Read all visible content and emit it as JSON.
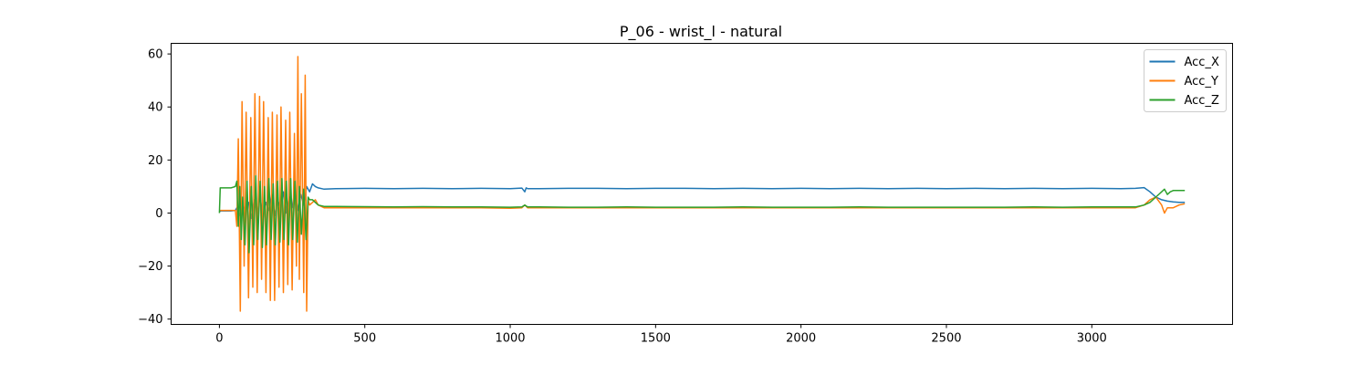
{
  "chart_data": {
    "type": "line",
    "title": "P_06 - wrist_l - natural",
    "xlabel": "",
    "ylabel": "",
    "xlim": [
      -166,
      3484
    ],
    "ylim": [
      -42,
      64
    ],
    "xticks": [
      0,
      500,
      1000,
      1500,
      2000,
      2500,
      3000
    ],
    "yticks": [
      -40,
      -20,
      0,
      20,
      40,
      60
    ],
    "grid": false,
    "legend_position": "upper right",
    "series": [
      {
        "name": "Acc_X",
        "color": "#1f77b4",
        "points": [
          [
            0,
            0.5
          ],
          [
            5,
            0.8
          ],
          [
            20,
            0.8
          ],
          [
            40,
            0.8
          ],
          [
            55,
            1
          ],
          [
            60,
            2
          ],
          [
            70,
            -1
          ],
          [
            80,
            3
          ],
          [
            90,
            1
          ],
          [
            100,
            4
          ],
          [
            110,
            -2
          ],
          [
            120,
            5
          ],
          [
            130,
            0
          ],
          [
            140,
            6
          ],
          [
            150,
            -2
          ],
          [
            160,
            4
          ],
          [
            170,
            1
          ],
          [
            180,
            7
          ],
          [
            190,
            -1
          ],
          [
            200,
            5
          ],
          [
            210,
            2
          ],
          [
            220,
            8
          ],
          [
            230,
            0
          ],
          [
            240,
            6
          ],
          [
            250,
            2
          ],
          [
            260,
            9
          ],
          [
            270,
            1
          ],
          [
            280,
            7
          ],
          [
            290,
            3
          ],
          [
            300,
            10
          ],
          [
            310,
            8
          ],
          [
            320,
            11
          ],
          [
            330,
            10
          ],
          [
            340,
            9.5
          ],
          [
            360,
            9
          ],
          [
            400,
            9.2
          ],
          [
            500,
            9.3
          ],
          [
            600,
            9.2
          ],
          [
            700,
            9.3
          ],
          [
            800,
            9.2
          ],
          [
            900,
            9.3
          ],
          [
            1000,
            9.2
          ],
          [
            1040,
            9.4
          ],
          [
            1050,
            8
          ],
          [
            1055,
            9.5
          ],
          [
            1060,
            9.2
          ],
          [
            1100,
            9.2
          ],
          [
            1200,
            9.3
          ],
          [
            1300,
            9.3
          ],
          [
            1400,
            9.2
          ],
          [
            1500,
            9.3
          ],
          [
            1600,
            9.3
          ],
          [
            1700,
            9.2
          ],
          [
            1800,
            9.3
          ],
          [
            1900,
            9.2
          ],
          [
            2000,
            9.3
          ],
          [
            2100,
            9.2
          ],
          [
            2200,
            9.3
          ],
          [
            2300,
            9.2
          ],
          [
            2400,
            9.3
          ],
          [
            2500,
            9.2
          ],
          [
            2600,
            9.3
          ],
          [
            2700,
            9.2
          ],
          [
            2800,
            9.3
          ],
          [
            2900,
            9.2
          ],
          [
            3000,
            9.3
          ],
          [
            3100,
            9.2
          ],
          [
            3150,
            9.3
          ],
          [
            3180,
            9.6
          ],
          [
            3200,
            8
          ],
          [
            3220,
            6
          ],
          [
            3240,
            5
          ],
          [
            3260,
            4.5
          ],
          [
            3280,
            4.2
          ],
          [
            3300,
            4
          ],
          [
            3320,
            4
          ]
        ]
      },
      {
        "name": "Acc_Y",
        "color": "#ff7f0e",
        "points": [
          [
            0,
            1
          ],
          [
            40,
            1
          ],
          [
            55,
            1
          ],
          [
            60,
            -5
          ],
          [
            65,
            28
          ],
          [
            72,
            -37
          ],
          [
            78,
            42
          ],
          [
            85,
            -20
          ],
          [
            92,
            38
          ],
          [
            100,
            -32
          ],
          [
            108,
            36
          ],
          [
            115,
            -28
          ],
          [
            122,
            45
          ],
          [
            130,
            -30
          ],
          [
            138,
            44
          ],
          [
            145,
            -25
          ],
          [
            152,
            42
          ],
          [
            160,
            -30
          ],
          [
            168,
            36
          ],
          [
            175,
            -33
          ],
          [
            182,
            38
          ],
          [
            190,
            -33
          ],
          [
            198,
            37
          ],
          [
            205,
            -28
          ],
          [
            212,
            40
          ],
          [
            220,
            -30
          ],
          [
            228,
            35
          ],
          [
            235,
            -27
          ],
          [
            242,
            38
          ],
          [
            250,
            -29
          ],
          [
            258,
            30
          ],
          [
            265,
            -20
          ],
          [
            270,
            59
          ],
          [
            275,
            -25
          ],
          [
            282,
            45
          ],
          [
            290,
            -30
          ],
          [
            295,
            52
          ],
          [
            300,
            -37
          ],
          [
            305,
            5
          ],
          [
            310,
            3
          ],
          [
            320,
            4
          ],
          [
            330,
            5
          ],
          [
            340,
            3
          ],
          [
            360,
            2
          ],
          [
            400,
            2
          ],
          [
            500,
            2
          ],
          [
            600,
            2
          ],
          [
            700,
            2
          ],
          [
            800,
            2
          ],
          [
            900,
            2
          ],
          [
            1000,
            1.8
          ],
          [
            1040,
            2
          ],
          [
            1050,
            3
          ],
          [
            1060,
            2
          ],
          [
            1100,
            2
          ],
          [
            1200,
            2
          ],
          [
            1300,
            2
          ],
          [
            1400,
            2
          ],
          [
            1500,
            2
          ],
          [
            1600,
            2
          ],
          [
            1700,
            2
          ],
          [
            1800,
            2
          ],
          [
            1900,
            2
          ],
          [
            2000,
            2
          ],
          [
            2100,
            2
          ],
          [
            2200,
            2
          ],
          [
            2300,
            2
          ],
          [
            2400,
            2
          ],
          [
            2500,
            2
          ],
          [
            2600,
            2
          ],
          [
            2700,
            2
          ],
          [
            2800,
            2
          ],
          [
            2900,
            2
          ],
          [
            3000,
            2
          ],
          [
            3100,
            2
          ],
          [
            3150,
            2
          ],
          [
            3180,
            3
          ],
          [
            3200,
            5
          ],
          [
            3220,
            6
          ],
          [
            3240,
            3
          ],
          [
            3250,
            0
          ],
          [
            3260,
            2
          ],
          [
            3280,
            2
          ],
          [
            3300,
            3
          ],
          [
            3320,
            3.5
          ]
        ]
      },
      {
        "name": "Acc_Z",
        "color": "#2ca02c",
        "points": [
          [
            0,
            0
          ],
          [
            3,
            9.5
          ],
          [
            20,
            9.5
          ],
          [
            40,
            9.5
          ],
          [
            55,
            10
          ],
          [
            60,
            12
          ],
          [
            65,
            -5
          ],
          [
            70,
            10
          ],
          [
            75,
            -10
          ],
          [
            80,
            6
          ],
          [
            88,
            -12
          ],
          [
            95,
            12
          ],
          [
            102,
            -15
          ],
          [
            110,
            10
          ],
          [
            118,
            -12
          ],
          [
            125,
            14
          ],
          [
            132,
            -10
          ],
          [
            140,
            12
          ],
          [
            148,
            -13
          ],
          [
            155,
            10
          ],
          [
            162,
            -12
          ],
          [
            170,
            13
          ],
          [
            178,
            -10
          ],
          [
            185,
            11
          ],
          [
            192,
            -12
          ],
          [
            200,
            12
          ],
          [
            208,
            -11
          ],
          [
            215,
            13
          ],
          [
            222,
            -10
          ],
          [
            230,
            12
          ],
          [
            238,
            -12
          ],
          [
            245,
            13
          ],
          [
            252,
            -10
          ],
          [
            260,
            12
          ],
          [
            268,
            -11
          ],
          [
            275,
            10
          ],
          [
            282,
            -8
          ],
          [
            290,
            9
          ],
          [
            298,
            -10
          ],
          [
            305,
            6
          ],
          [
            310,
            5
          ],
          [
            320,
            5
          ],
          [
            330,
            4
          ],
          [
            340,
            3
          ],
          [
            360,
            2.5
          ],
          [
            400,
            2.5
          ],
          [
            500,
            2.4
          ],
          [
            600,
            2.3
          ],
          [
            700,
            2.4
          ],
          [
            800,
            2.3
          ],
          [
            900,
            2.3
          ],
          [
            1000,
            2.2
          ],
          [
            1040,
            2.3
          ],
          [
            1050,
            3
          ],
          [
            1060,
            2.3
          ],
          [
            1100,
            2.3
          ],
          [
            1200,
            2.2
          ],
          [
            1300,
            2.2
          ],
          [
            1400,
            2.3
          ],
          [
            1500,
            2.2
          ],
          [
            1600,
            2.2
          ],
          [
            1700,
            2.2
          ],
          [
            1800,
            2.3
          ],
          [
            1900,
            2.2
          ],
          [
            2000,
            2.2
          ],
          [
            2100,
            2.2
          ],
          [
            2200,
            2.3
          ],
          [
            2300,
            2.2
          ],
          [
            2400,
            2.2
          ],
          [
            2500,
            2.2
          ],
          [
            2600,
            2.2
          ],
          [
            2700,
            2.2
          ],
          [
            2800,
            2.3
          ],
          [
            2900,
            2.2
          ],
          [
            3000,
            2.3
          ],
          [
            3100,
            2.3
          ],
          [
            3150,
            2.3
          ],
          [
            3180,
            3
          ],
          [
            3200,
            4
          ],
          [
            3220,
            6
          ],
          [
            3240,
            8
          ],
          [
            3250,
            9
          ],
          [
            3260,
            7
          ],
          [
            3270,
            8
          ],
          [
            3280,
            8.5
          ],
          [
            3300,
            8.5
          ],
          [
            3320,
            8.5
          ]
        ]
      }
    ]
  }
}
